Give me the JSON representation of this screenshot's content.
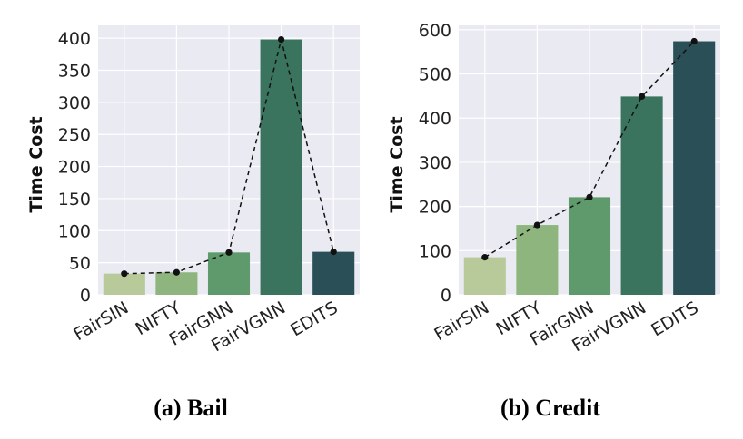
{
  "chart_data": [
    {
      "type": "bar",
      "caption": "(a) Bail",
      "ylabel": "Time Cost",
      "categories": [
        "FairSIN",
        "NIFTY",
        "FairGNN",
        "FairVGNN",
        "EDITS"
      ],
      "values": [
        33,
        35,
        66,
        398,
        67
      ],
      "line_overlay": true,
      "ylim": [
        0,
        420
      ],
      "yticks": [
        0,
        50,
        100,
        150,
        200,
        250,
        300,
        350,
        400
      ],
      "grid": true
    },
    {
      "type": "bar",
      "caption": "(b) Credit",
      "ylabel": "Time Cost",
      "categories": [
        "FairSIN",
        "NIFTY",
        "FairGNN",
        "FairVGNN",
        "EDITS"
      ],
      "values": [
        85,
        158,
        221,
        449,
        574
      ],
      "line_overlay": true,
      "ylim": [
        0,
        610
      ],
      "yticks": [
        0,
        100,
        200,
        300,
        400,
        500,
        600
      ],
      "grid": true
    }
  ],
  "colors": {
    "plot_background": "#eaeaf2",
    "grid": "#ffffff",
    "bars": [
      "#b8c99a",
      "#8fb57f",
      "#5e9a6b",
      "#3a735e",
      "#2a4f57"
    ],
    "line": "#111111"
  }
}
